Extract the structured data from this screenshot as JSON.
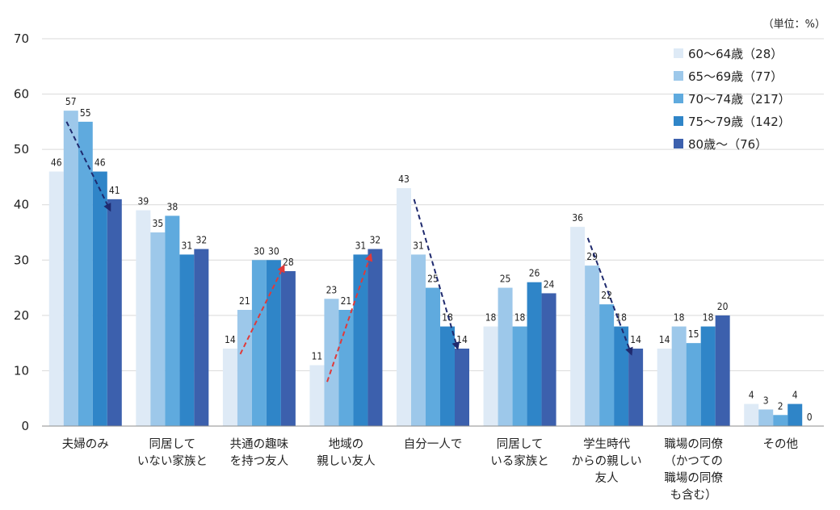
{
  "chart_data": {
    "type": "bar",
    "unit_note": "（単位：%）",
    "ylim": [
      0,
      70
    ],
    "yticks": [
      "0",
      "10",
      "20",
      "30",
      "40",
      "50",
      "60",
      "70"
    ],
    "categories": [
      [
        "夫婦のみ"
      ],
      [
        "同居して",
        "いない家族と"
      ],
      [
        "共通の趣味",
        "を持つ友人"
      ],
      [
        "地域の",
        "親しい友人"
      ],
      [
        "自分一人で"
      ],
      [
        "同居して",
        "いる家族と"
      ],
      [
        "学生時代",
        "からの親しい",
        "友人"
      ],
      [
        "職場の同僚",
        "（かつての",
        "職場の同僚",
        "も含む）"
      ],
      [
        "その他"
      ]
    ],
    "series": [
      {
        "name": "60～64歳（28）",
        "color": "#deeaf6",
        "values": [
          46,
          39,
          14,
          11,
          43,
          18,
          36,
          14,
          4
        ],
        "labels": [
          "46",
          "39",
          "14",
          "11",
          "43",
          "18",
          "36",
          "14",
          "4"
        ]
      },
      {
        "name": "65～69歳（77）",
        "color": "#9dc8ea",
        "values": [
          57,
          35,
          21,
          23,
          31,
          25,
          29,
          18,
          3
        ],
        "labels": [
          "57",
          "35",
          "21",
          "23",
          "31",
          "25",
          "29",
          "18",
          "3"
        ]
      },
      {
        "name": "70～74歳（217）",
        "color": "#5faade",
        "values": [
          55,
          38,
          30,
          21,
          25,
          18,
          22,
          15,
          2
        ],
        "labels": [
          "55",
          "38",
          "30",
          "21",
          "25",
          "18",
          "22",
          "15",
          "2"
        ]
      },
      {
        "name": "75～79歳（142）",
        "color": "#2f85c8",
        "values": [
          46,
          31,
          30,
          31,
          18,
          26,
          18,
          18,
          4
        ],
        "labels": [
          "46",
          "31",
          "30",
          "31",
          "18",
          "26",
          "18",
          "18",
          "4"
        ]
      },
      {
        "name": "80歳～（76）",
        "color": "#3c60ad",
        "values": [
          41,
          32,
          28,
          32,
          14,
          24,
          14,
          20,
          0
        ],
        "labels": [
          "41",
          "32",
          "28",
          "32",
          "14",
          "24",
          "14",
          "20",
          "0"
        ]
      }
    ],
    "trend_arrows": [
      {
        "category": 0,
        "from_value": 55,
        "to_value": 39,
        "direction": "decreasing",
        "color": "#1f2a6e"
      },
      {
        "category": 2,
        "from_value": 13,
        "to_value": 29,
        "direction": "increasing",
        "color": "#e03a3a"
      },
      {
        "category": 3,
        "from_value": 8,
        "to_value": 31,
        "direction": "increasing",
        "color": "#e03a3a"
      },
      {
        "category": 4,
        "from_value": 41,
        "to_value": 14,
        "direction": "decreasing",
        "color": "#1f2a6e"
      },
      {
        "category": 6,
        "from_value": 34,
        "to_value": 13,
        "direction": "decreasing",
        "color": "#1f2a6e"
      }
    ],
    "grid": true,
    "legend": "top-right"
  }
}
